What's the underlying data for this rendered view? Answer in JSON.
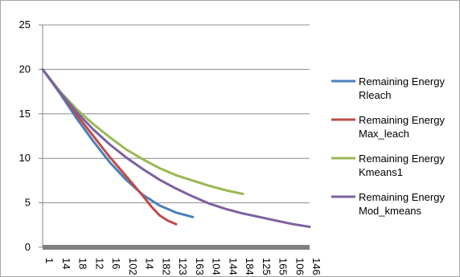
{
  "chart_data": {
    "type": "line",
    "title": "",
    "xlabel": "",
    "ylabel": "",
    "ylim": [
      0,
      25
    ],
    "y_ticks": [
      "0",
      "5",
      "10",
      "15",
      "20",
      "25"
    ],
    "x_tick_labels": [
      "1",
      "14",
      "18",
      "12",
      "16",
      "102",
      "14",
      "182",
      "123",
      "163",
      "104",
      "144",
      "184",
      "125",
      "165",
      "106",
      "146"
    ],
    "x_range": [
      0,
      16
    ],
    "grid": true,
    "legend_position": "right",
    "series": [
      {
        "name": "Remaining Energy Rleach",
        "legend_lines": [
          "Remaining Energy",
          "Rleach"
        ],
        "color": "#4a7ebb",
        "x": [
          0,
          1,
          2,
          3,
          4,
          5,
          6,
          7,
          8,
          9
        ],
        "y": [
          20,
          17.4,
          14.6,
          12.0,
          9.6,
          7.6,
          5.9,
          4.7,
          3.9,
          3.4
        ]
      },
      {
        "name": "Remaining Energy Max_leach",
        "legend_lines": [
          "Remaining Energy",
          "Max_leach"
        ],
        "color": "#be4b48",
        "x": [
          0,
          1,
          2,
          3,
          4,
          5,
          6,
          6.5,
          7,
          7.5,
          8
        ],
        "y": [
          20,
          17.6,
          15.0,
          12.6,
          10.2,
          8.0,
          5.8,
          4.6,
          3.6,
          3.0,
          2.6
        ]
      },
      {
        "name": "Remaining Energy Kmeans1",
        "legend_lines": [
          "Remaining Energy",
          "Kmeans1"
        ],
        "color": "#98b954",
        "x": [
          0,
          1,
          2,
          3,
          4,
          5,
          6,
          7,
          8,
          9,
          10,
          11,
          12
        ],
        "y": [
          20,
          17.6,
          15.6,
          13.9,
          12.4,
          11.0,
          9.9,
          8.9,
          8.1,
          7.5,
          6.9,
          6.4,
          6.0
        ]
      },
      {
        "name": "Remaining Energy Mod_kmeans",
        "legend_lines": [
          "Remaining Energy",
          "Mod_kmeans"
        ],
        "color": "#7d60a0",
        "x": [
          0,
          1,
          2,
          3,
          4,
          5,
          6,
          7,
          8,
          9,
          10,
          11,
          12,
          13,
          14,
          15,
          16
        ],
        "y": [
          20,
          17.5,
          15.3,
          13.3,
          11.6,
          10.1,
          8.8,
          7.6,
          6.6,
          5.7,
          4.9,
          4.3,
          3.8,
          3.4,
          3.0,
          2.6,
          2.3
        ]
      }
    ]
  }
}
